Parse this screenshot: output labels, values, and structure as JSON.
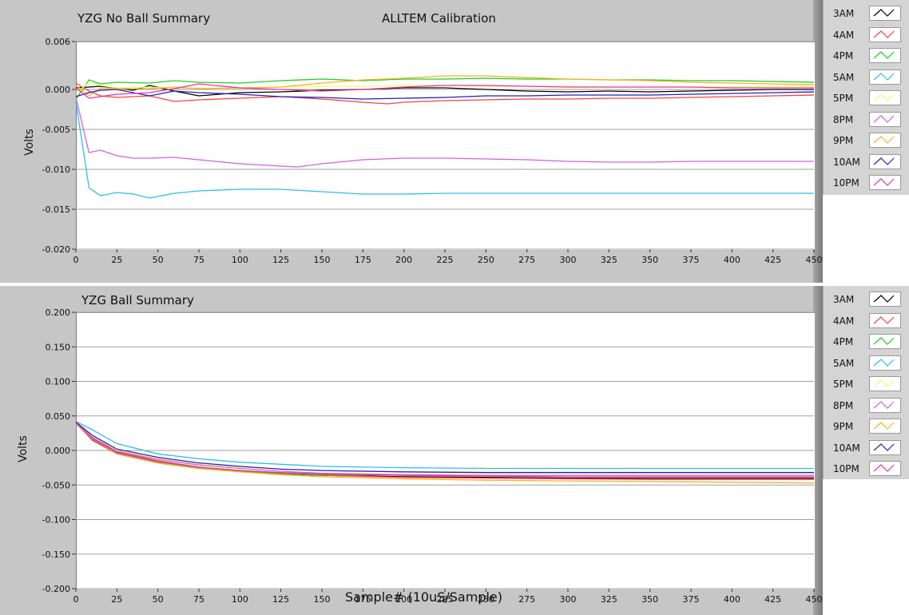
{
  "chart_data": [
    {
      "type": "line",
      "title": "YZG No Ball Summary",
      "subtitle": "ALLTEM Calibration",
      "xlabel": "",
      "ylabel": "Volts",
      "xlim": [
        0,
        450
      ],
      "ylim": [
        -0.02,
        0.006
      ],
      "xticks": [
        0,
        25,
        50,
        75,
        100,
        125,
        150,
        175,
        200,
        225,
        250,
        275,
        300,
        325,
        350,
        375,
        400,
        425,
        450
      ],
      "yticks": [
        -0.02,
        -0.015,
        -0.01,
        -0.005,
        0.0,
        0.006
      ],
      "ytick_labels": [
        "-0.020",
        "-0.015",
        "-0.010",
        "-0.005",
        "0.000",
        "0.006"
      ],
      "grid": true,
      "legend_position": "right",
      "series": [
        {
          "name": "3AM",
          "color": "#000000",
          "x": [
            0,
            8,
            15,
            25,
            35,
            45,
            60,
            75,
            100,
            125,
            150,
            175,
            200,
            225,
            250,
            275,
            300,
            325,
            350,
            375,
            400,
            425,
            450
          ],
          "y": [
            0.0002,
            0.0003,
            0.0004,
            0.0002,
            -0.0001,
            0.0005,
            -0.0002,
            -0.0008,
            -0.0004,
            -0.0003,
            -0.0001,
            0.0,
            0.0002,
            0.0002,
            0.0,
            -0.0002,
            -0.0003,
            -0.0002,
            -0.0003,
            -0.0002,
            -0.0001,
            0.0,
            0.0
          ]
        },
        {
          "name": "4AM",
          "color": "#ff4040",
          "x": [
            0,
            8,
            15,
            25,
            45,
            60,
            75,
            100,
            125,
            150,
            175,
            190,
            200,
            225,
            250,
            275,
            300,
            325,
            350,
            375,
            400,
            425,
            450
          ],
          "y": [
            0.0008,
            -0.0002,
            -0.0008,
            -0.001,
            -0.0008,
            -0.0015,
            -0.0013,
            -0.0011,
            -0.0009,
            -0.0012,
            -0.0016,
            -0.0018,
            -0.0016,
            -0.0014,
            -0.0013,
            -0.0012,
            -0.0012,
            -0.0011,
            -0.0011,
            -0.001,
            -0.0009,
            -0.0008,
            -0.0007
          ]
        },
        {
          "name": "4PM",
          "color": "#22cc22",
          "x": [
            0,
            8,
            15,
            25,
            45,
            60,
            75,
            100,
            125,
            150,
            175,
            200,
            225,
            250,
            275,
            300,
            325,
            350,
            375,
            400,
            425,
            450
          ],
          "y": [
            -0.0012,
            0.0012,
            0.0007,
            0.0009,
            0.0008,
            0.0011,
            0.0009,
            0.0008,
            0.0011,
            0.0013,
            0.0011,
            0.0013,
            0.0013,
            0.0014,
            0.0013,
            0.0013,
            0.0012,
            0.0012,
            0.0011,
            0.0011,
            0.001,
            0.0009
          ]
        },
        {
          "name": "5AM",
          "color": "#33bbee",
          "x": [
            0,
            8,
            15,
            25,
            35,
            45,
            60,
            75,
            100,
            125,
            150,
            175,
            200,
            225,
            250,
            275,
            300,
            325,
            350,
            375,
            400,
            425,
            450
          ],
          "y": [
            -0.0015,
            -0.0123,
            -0.0133,
            -0.0129,
            -0.0131,
            -0.0136,
            -0.013,
            -0.0127,
            -0.0125,
            -0.0125,
            -0.0128,
            -0.0131,
            -0.0131,
            -0.013,
            -0.013,
            -0.013,
            -0.013,
            -0.013,
            -0.013,
            -0.013,
            -0.013,
            -0.013,
            -0.013
          ]
        },
        {
          "name": "5PM",
          "color": "#e8ff70",
          "x": [
            0,
            8,
            15,
            25,
            45,
            60,
            75,
            100,
            125,
            150,
            175,
            200,
            225,
            250,
            275,
            300,
            325,
            350,
            375,
            400,
            425,
            450
          ],
          "y": [
            -0.0005,
            0.0009,
            0.0005,
            0.0002,
            0.0003,
            0.0001,
            0.0002,
            0.0001,
            0.0003,
            0.0004,
            0.0004,
            0.0005,
            0.0005,
            0.0004,
            0.0004,
            0.0004,
            0.0003,
            0.0003,
            0.0003,
            0.0003,
            0.0004,
            0.0004
          ]
        },
        {
          "name": "8PM",
          "color": "#d060e8",
          "x": [
            0,
            8,
            15,
            25,
            35,
            45,
            60,
            75,
            100,
            125,
            135,
            150,
            175,
            200,
            225,
            250,
            275,
            300,
            325,
            350,
            375,
            400,
            425,
            450
          ],
          "y": [
            -0.001,
            -0.0079,
            -0.0076,
            -0.0083,
            -0.0086,
            -0.0086,
            -0.0085,
            -0.0088,
            -0.0093,
            -0.0096,
            -0.0097,
            -0.0093,
            -0.0088,
            -0.0086,
            -0.0086,
            -0.0087,
            -0.0088,
            -0.009,
            -0.0091,
            -0.0091,
            -0.009,
            -0.009,
            -0.009,
            -0.009
          ]
        },
        {
          "name": "9PM",
          "color": "#ffb020",
          "x": [
            0,
            8,
            15,
            25,
            45,
            60,
            75,
            100,
            125,
            150,
            175,
            200,
            225,
            250,
            275,
            300,
            325,
            350,
            375,
            400,
            425,
            450
          ],
          "y": [
            0.0005,
            -0.0008,
            0.0002,
            0.0001,
            0.0001,
            0.0003,
            0.0001,
            0.0002,
            0.0003,
            0.0008,
            0.0012,
            0.0014,
            0.0017,
            0.0017,
            0.0015,
            0.0013,
            0.0012,
            0.0011,
            0.0009,
            0.0008,
            0.0007,
            0.0006
          ]
        },
        {
          "name": "10AM",
          "color": "#2222bb",
          "x": [
            0,
            8,
            15,
            25,
            45,
            60,
            75,
            100,
            125,
            150,
            175,
            200,
            225,
            250,
            275,
            300,
            325,
            350,
            375,
            400,
            425,
            450
          ],
          "y": [
            -0.0009,
            -0.0004,
            -0.0001,
            0.0,
            -0.0008,
            -0.0002,
            -0.0004,
            -0.0006,
            -0.0009,
            -0.001,
            -0.0012,
            -0.0011,
            -0.001,
            -0.0008,
            -0.0008,
            -0.0007,
            -0.0007,
            -0.0007,
            -0.0006,
            -0.0005,
            -0.0004,
            -0.0003
          ]
        },
        {
          "name": "10PM",
          "color": "#ee3399",
          "x": [
            0,
            8,
            15,
            25,
            45,
            60,
            75,
            100,
            125,
            150,
            175,
            200,
            225,
            250,
            275,
            300,
            325,
            350,
            375,
            400,
            425,
            450
          ],
          "y": [
            0.0002,
            -0.0011,
            -0.0009,
            -0.0006,
            -0.0004,
            0.0001,
            0.0007,
            0.0002,
            0.0,
            -0.0002,
            0.0,
            0.0003,
            0.0005,
            0.0005,
            0.0004,
            0.0003,
            0.0003,
            0.0003,
            0.0003,
            0.0002,
            0.0002,
            0.0002
          ]
        }
      ]
    },
    {
      "type": "line",
      "title": "YZG Ball Summary",
      "xlabel": "Sample# (10uS/Sample)",
      "ylabel": "Volts",
      "xlim": [
        0,
        450
      ],
      "ylim": [
        -0.2,
        0.2
      ],
      "xticks": [
        0,
        25,
        50,
        75,
        100,
        125,
        150,
        175,
        200,
        225,
        250,
        275,
        300,
        325,
        350,
        375,
        400,
        425,
        450
      ],
      "yticks": [
        -0.2,
        -0.15,
        -0.1,
        -0.05,
        0.0,
        0.05,
        0.1,
        0.15,
        0.2
      ],
      "ytick_labels": [
        "-0.200",
        "-0.150",
        "-0.100",
        "-0.050",
        "0.000",
        "0.050",
        "0.100",
        "0.150",
        "0.200"
      ],
      "grid": true,
      "legend_position": "right",
      "series": [
        {
          "name": "3AM",
          "color": "#000000",
          "x": [
            0,
            10,
            25,
            50,
            75,
            100,
            125,
            150,
            200,
            250,
            300,
            350,
            400,
            450
          ],
          "y": [
            0.04,
            0.015,
            -0.005,
            -0.018,
            -0.026,
            -0.03,
            -0.034,
            -0.036,
            -0.038,
            -0.039,
            -0.04,
            -0.04,
            -0.04,
            -0.04
          ]
        },
        {
          "name": "4AM",
          "color": "#ff4040",
          "x": [
            0,
            10,
            25,
            50,
            75,
            100,
            125,
            150,
            200,
            250,
            300,
            350,
            400,
            450
          ],
          "y": [
            0.04,
            0.018,
            -0.002,
            -0.015,
            -0.024,
            -0.029,
            -0.033,
            -0.036,
            -0.039,
            -0.04,
            -0.041,
            -0.042,
            -0.042,
            -0.042
          ]
        },
        {
          "name": "4PM",
          "color": "#22cc22",
          "x": [
            0,
            10,
            25,
            50,
            75,
            100,
            125,
            150,
            200,
            250,
            300,
            350,
            400,
            450
          ],
          "y": [
            0.04,
            0.016,
            -0.004,
            -0.017,
            -0.025,
            -0.03,
            -0.034,
            -0.035,
            -0.036,
            -0.036,
            -0.036,
            -0.036,
            -0.036,
            -0.036
          ]
        },
        {
          "name": "5AM",
          "color": "#33bbee",
          "x": [
            0,
            10,
            25,
            50,
            75,
            100,
            125,
            150,
            200,
            250,
            300,
            350,
            400,
            450
          ],
          "y": [
            0.042,
            0.03,
            0.01,
            -0.005,
            -0.012,
            -0.017,
            -0.02,
            -0.023,
            -0.025,
            -0.026,
            -0.026,
            -0.026,
            -0.026,
            -0.026
          ]
        },
        {
          "name": "5PM",
          "color": "#e8ff70",
          "x": [
            0,
            10,
            25,
            50,
            75,
            100,
            125,
            150,
            200,
            250,
            300,
            350,
            400,
            450
          ],
          "y": [
            0.04,
            0.02,
            0.0,
            -0.012,
            -0.02,
            -0.024,
            -0.027,
            -0.029,
            -0.031,
            -0.031,
            -0.031,
            -0.031,
            -0.031,
            -0.031
          ]
        },
        {
          "name": "8PM",
          "color": "#d060e8",
          "x": [
            0,
            10,
            25,
            50,
            75,
            100,
            125,
            150,
            200,
            250,
            300,
            350,
            400,
            450
          ],
          "y": [
            0.04,
            0.019,
            -0.001,
            -0.013,
            -0.021,
            -0.026,
            -0.03,
            -0.033,
            -0.035,
            -0.036,
            -0.036,
            -0.036,
            -0.036,
            -0.036
          ]
        },
        {
          "name": "9PM",
          "color": "#ffb020",
          "x": [
            0,
            10,
            25,
            50,
            75,
            100,
            125,
            150,
            200,
            250,
            300,
            350,
            400,
            450
          ],
          "y": [
            0.039,
            0.016,
            -0.005,
            -0.018,
            -0.026,
            -0.031,
            -0.035,
            -0.038,
            -0.041,
            -0.043,
            -0.044,
            -0.045,
            -0.046,
            -0.047
          ]
        },
        {
          "name": "10AM",
          "color": "#2222bb",
          "x": [
            0,
            10,
            25,
            50,
            75,
            100,
            125,
            150,
            200,
            250,
            300,
            350,
            400,
            450
          ],
          "y": [
            0.041,
            0.022,
            0.002,
            -0.01,
            -0.018,
            -0.023,
            -0.027,
            -0.029,
            -0.031,
            -0.032,
            -0.032,
            -0.032,
            -0.032,
            -0.032
          ]
        },
        {
          "name": "10PM",
          "color": "#ee3399",
          "x": [
            0,
            10,
            25,
            50,
            75,
            100,
            125,
            150,
            200,
            250,
            300,
            350,
            400,
            450
          ],
          "y": [
            0.04,
            0.017,
            -0.003,
            -0.016,
            -0.024,
            -0.029,
            -0.032,
            -0.034,
            -0.036,
            -0.037,
            -0.038,
            -0.038,
            -0.038,
            -0.038
          ]
        }
      ]
    }
  ]
}
